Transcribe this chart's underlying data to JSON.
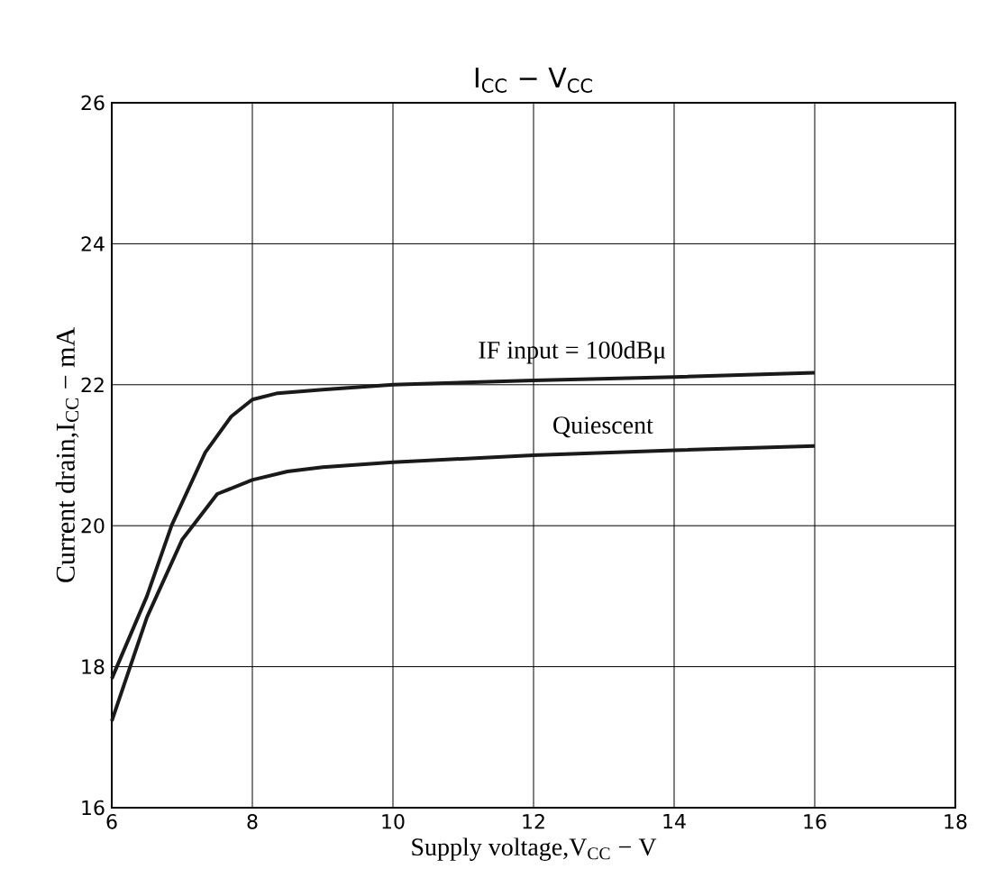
{
  "chart_data": {
    "type": "line",
    "title": "I$_{CC}$  −  V$_{CC}$",
    "xlabel": "Supply voltage,V$_{CC}$ − V",
    "ylabel": "Current drain,I$_{CC}$ − mA",
    "xlim": [
      6,
      18
    ],
    "ylim": [
      16,
      26
    ],
    "xticks": [
      6,
      8,
      10,
      12,
      14,
      16,
      18
    ],
    "yticks": [
      16,
      18,
      20,
      22,
      24,
      26
    ],
    "grid": true,
    "legend": false,
    "marker": "none",
    "line_style": "solid",
    "series": [
      {
        "name": "IF input = 100dBμ",
        "color": "#1a1a1a",
        "x": [
          6,
          6.5,
          6.85,
          7.33,
          7.7,
          8.0,
          8.36,
          9,
          10,
          12,
          14,
          16
        ],
        "values": [
          17.83,
          19.0,
          20.0,
          21.04,
          21.55,
          21.79,
          21.88,
          21.93,
          22.0,
          22.06,
          22.11,
          22.17
        ]
      },
      {
        "name": "Quiescent",
        "color": "#1a1a1a",
        "x": [
          6,
          6.5,
          7,
          7.5,
          8,
          8.5,
          9,
          10,
          12,
          14,
          16
        ],
        "values": [
          17.23,
          18.7,
          19.8,
          20.45,
          20.65,
          20.77,
          20.83,
          20.9,
          21.0,
          21.07,
          21.13
        ]
      }
    ]
  }
}
